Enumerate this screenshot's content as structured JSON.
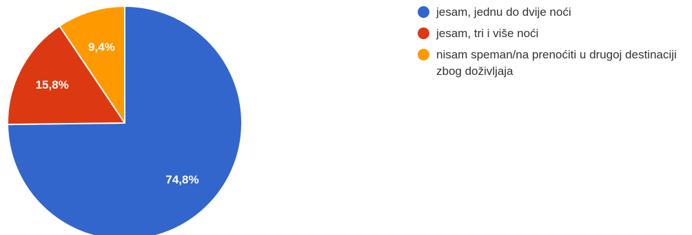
{
  "chart_data": {
    "type": "pie",
    "title": "",
    "slices": [
      {
        "label": "jesam, jednu do dvije noći",
        "value": 74.8,
        "display": "74,8%",
        "color": "#3366cc"
      },
      {
        "label": "jesam, tri i više noći",
        "value": 15.8,
        "display": "15,8%",
        "color": "#dc3912"
      },
      {
        "label": "nisam speman/na prenoćiti u drugoj destinaciji zbog doživljaja",
        "value": 9.4,
        "display": "9,4%",
        "color": "#ff9900"
      }
    ],
    "legend_position": "right",
    "start_angle_deg": 0,
    "direction": "clockwise"
  }
}
